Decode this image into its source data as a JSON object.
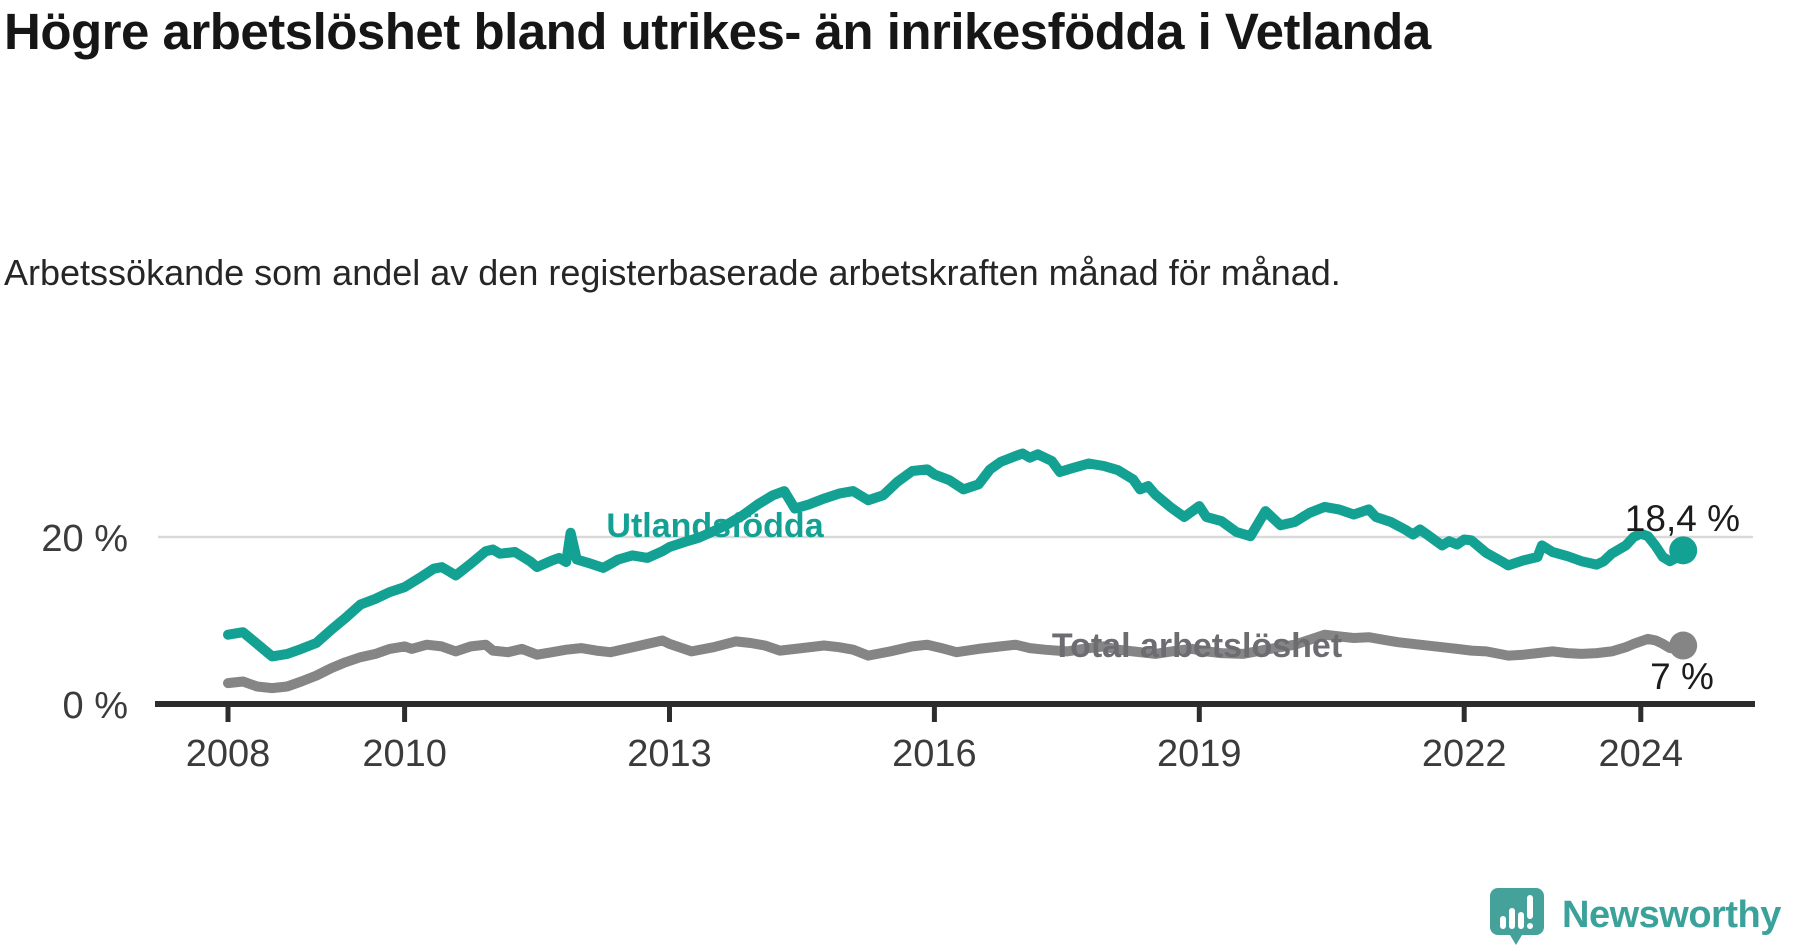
{
  "header": {
    "title": "Högre arbetslöshet bland utrikes- än inrikesfödda i Vetlanda",
    "subtitle": "Arbetssökande som andel av den registerbaserade arbetskraften månad för månad."
  },
  "chart_data": {
    "type": "line",
    "title": "Högre arbetslöshet bland utrikes- än inrikesfödda i Vetlanda",
    "subtitle": "Arbetssökande som andel av den registerbaserade arbetskraften månad för månad.",
    "unit": "%",
    "grid": "single horizontal gridline at 20 %",
    "legend_position": "inline labels on lines",
    "xlim": [
      2007.15,
      2025.2
    ],
    "ylim": [
      0,
      32
    ],
    "x_ticks": [
      2008,
      2010,
      2013,
      2016,
      2019,
      2022,
      2024
    ],
    "y_ticks": [
      {
        "value": 20,
        "label": "20 %"
      },
      {
        "value": 0,
        "label": "0 %"
      }
    ],
    "colors": {
      "foreign_born_line": "#12a192",
      "total_line": "#858585",
      "total_label": "#6c6c71",
      "axis": "#2d2d2d",
      "tick_text": "#3b3b3b",
      "gridline": "#d9d9d9",
      "value_text": "#1c1c1c"
    },
    "series": [
      {
        "name": "Utlandsfödda",
        "color": "#12a192",
        "end_value": 18.4,
        "end_label": "18,4 %",
        "points": [
          [
            2008.0,
            8.3
          ],
          [
            2008.17,
            8.6
          ],
          [
            2008.33,
            7.2
          ],
          [
            2008.5,
            5.7
          ],
          [
            2008.67,
            6.0
          ],
          [
            2008.83,
            6.6
          ],
          [
            2009.0,
            7.3
          ],
          [
            2009.17,
            8.9
          ],
          [
            2009.33,
            10.3
          ],
          [
            2009.5,
            11.9
          ],
          [
            2009.67,
            12.6
          ],
          [
            2009.83,
            13.4
          ],
          [
            2010.0,
            14.0
          ],
          [
            2010.17,
            15.1
          ],
          [
            2010.33,
            16.2
          ],
          [
            2010.42,
            16.4
          ],
          [
            2010.5,
            15.9
          ],
          [
            2010.58,
            15.4
          ],
          [
            2010.75,
            16.8
          ],
          [
            2010.92,
            18.3
          ],
          [
            2011.0,
            18.5
          ],
          [
            2011.08,
            18.0
          ],
          [
            2011.25,
            18.2
          ],
          [
            2011.42,
            17.1
          ],
          [
            2011.5,
            16.4
          ],
          [
            2011.67,
            17.2
          ],
          [
            2011.75,
            17.5
          ],
          [
            2011.83,
            17.0
          ],
          [
            2011.88,
            20.5
          ],
          [
            2011.95,
            17.3
          ],
          [
            2012.08,
            16.9
          ],
          [
            2012.25,
            16.3
          ],
          [
            2012.42,
            17.3
          ],
          [
            2012.58,
            17.8
          ],
          [
            2012.75,
            17.5
          ],
          [
            2012.92,
            18.3
          ],
          [
            2013.0,
            18.8
          ],
          [
            2013.17,
            19.4
          ],
          [
            2013.33,
            19.9
          ],
          [
            2013.5,
            20.7
          ],
          [
            2013.67,
            21.6
          ],
          [
            2013.83,
            22.6
          ],
          [
            2014.0,
            23.9
          ],
          [
            2014.17,
            25.0
          ],
          [
            2014.3,
            25.5
          ],
          [
            2014.42,
            23.4
          ],
          [
            2014.58,
            23.9
          ],
          [
            2014.75,
            24.6
          ],
          [
            2014.92,
            25.2
          ],
          [
            2015.08,
            25.5
          ],
          [
            2015.25,
            24.4
          ],
          [
            2015.42,
            25.0
          ],
          [
            2015.58,
            26.6
          ],
          [
            2015.75,
            27.9
          ],
          [
            2015.92,
            28.1
          ],
          [
            2016.0,
            27.5
          ],
          [
            2016.17,
            26.8
          ],
          [
            2016.33,
            25.7
          ],
          [
            2016.5,
            26.3
          ],
          [
            2016.63,
            28.1
          ],
          [
            2016.75,
            29.0
          ],
          [
            2016.92,
            29.7
          ],
          [
            2017.0,
            30.0
          ],
          [
            2017.08,
            29.5
          ],
          [
            2017.17,
            29.9
          ],
          [
            2017.33,
            29.1
          ],
          [
            2017.42,
            27.8
          ],
          [
            2017.58,
            28.3
          ],
          [
            2017.75,
            28.8
          ],
          [
            2017.92,
            28.5
          ],
          [
            2018.08,
            28.0
          ],
          [
            2018.25,
            26.9
          ],
          [
            2018.33,
            25.7
          ],
          [
            2018.42,
            26.1
          ],
          [
            2018.5,
            25.1
          ],
          [
            2018.67,
            23.6
          ],
          [
            2018.83,
            22.4
          ],
          [
            2019.0,
            23.7
          ],
          [
            2019.08,
            22.4
          ],
          [
            2019.25,
            21.9
          ],
          [
            2019.42,
            20.6
          ],
          [
            2019.58,
            20.1
          ],
          [
            2019.75,
            23.1
          ],
          [
            2019.92,
            21.4
          ],
          [
            2020.08,
            21.8
          ],
          [
            2020.25,
            22.9
          ],
          [
            2020.42,
            23.6
          ],
          [
            2020.58,
            23.3
          ],
          [
            2020.75,
            22.7
          ],
          [
            2020.92,
            23.3
          ],
          [
            2021.0,
            22.4
          ],
          [
            2021.17,
            21.8
          ],
          [
            2021.33,
            20.9
          ],
          [
            2021.42,
            20.3
          ],
          [
            2021.5,
            20.9
          ],
          [
            2021.58,
            20.3
          ],
          [
            2021.75,
            19.0
          ],
          [
            2021.83,
            19.5
          ],
          [
            2021.92,
            19.1
          ],
          [
            2022.0,
            19.7
          ],
          [
            2022.08,
            19.6
          ],
          [
            2022.25,
            18.1
          ],
          [
            2022.42,
            17.1
          ],
          [
            2022.5,
            16.6
          ],
          [
            2022.67,
            17.2
          ],
          [
            2022.83,
            17.6
          ],
          [
            2022.88,
            19.0
          ],
          [
            2023.0,
            18.2
          ],
          [
            2023.17,
            17.7
          ],
          [
            2023.33,
            17.1
          ],
          [
            2023.5,
            16.7
          ],
          [
            2023.58,
            17.1
          ],
          [
            2023.67,
            18.0
          ],
          [
            2023.83,
            19.0
          ],
          [
            2023.92,
            20.0
          ],
          [
            2024.0,
            20.4
          ],
          [
            2024.08,
            20.1
          ],
          [
            2024.17,
            18.9
          ],
          [
            2024.25,
            17.6
          ],
          [
            2024.33,
            17.1
          ],
          [
            2024.4,
            17.5
          ],
          [
            2024.48,
            18.4
          ]
        ]
      },
      {
        "name": "Total arbetslöshet",
        "color": "#858585",
        "end_value": 7,
        "end_label": "7 %",
        "points": [
          [
            2008.0,
            2.5
          ],
          [
            2008.17,
            2.7
          ],
          [
            2008.33,
            2.1
          ],
          [
            2008.5,
            1.9
          ],
          [
            2008.67,
            2.1
          ],
          [
            2008.83,
            2.7
          ],
          [
            2009.0,
            3.4
          ],
          [
            2009.17,
            4.3
          ],
          [
            2009.33,
            5.0
          ],
          [
            2009.5,
            5.6
          ],
          [
            2009.67,
            6.0
          ],
          [
            2009.83,
            6.6
          ],
          [
            2010.0,
            6.9
          ],
          [
            2010.08,
            6.6
          ],
          [
            2010.25,
            7.1
          ],
          [
            2010.42,
            6.9
          ],
          [
            2010.58,
            6.3
          ],
          [
            2010.75,
            6.9
          ],
          [
            2010.92,
            7.1
          ],
          [
            2011.0,
            6.4
          ],
          [
            2011.17,
            6.2
          ],
          [
            2011.33,
            6.6
          ],
          [
            2011.5,
            5.9
          ],
          [
            2011.67,
            6.2
          ],
          [
            2011.83,
            6.5
          ],
          [
            2012.0,
            6.7
          ],
          [
            2012.17,
            6.4
          ],
          [
            2012.33,
            6.2
          ],
          [
            2012.5,
            6.6
          ],
          [
            2012.75,
            7.2
          ],
          [
            2012.92,
            7.6
          ],
          [
            2013.0,
            7.2
          ],
          [
            2013.25,
            6.3
          ],
          [
            2013.5,
            6.8
          ],
          [
            2013.75,
            7.5
          ],
          [
            2013.92,
            7.3
          ],
          [
            2014.08,
            7.0
          ],
          [
            2014.25,
            6.4
          ],
          [
            2014.5,
            6.7
          ],
          [
            2014.75,
            7.0
          ],
          [
            2014.92,
            6.8
          ],
          [
            2015.08,
            6.5
          ],
          [
            2015.25,
            5.8
          ],
          [
            2015.5,
            6.3
          ],
          [
            2015.75,
            6.9
          ],
          [
            2015.92,
            7.1
          ],
          [
            2016.08,
            6.7
          ],
          [
            2016.25,
            6.2
          ],
          [
            2016.5,
            6.6
          ],
          [
            2016.75,
            6.9
          ],
          [
            2016.92,
            7.1
          ],
          [
            2017.08,
            6.7
          ],
          [
            2017.25,
            6.5
          ],
          [
            2017.5,
            6.3
          ],
          [
            2017.75,
            6.7
          ],
          [
            2017.92,
            6.9
          ],
          [
            2018.08,
            6.5
          ],
          [
            2018.25,
            6.3
          ],
          [
            2018.5,
            6.0
          ],
          [
            2018.75,
            6.4
          ],
          [
            2018.92,
            6.6
          ],
          [
            2019.08,
            6.3
          ],
          [
            2019.25,
            6.1
          ],
          [
            2019.5,
            6.0
          ],
          [
            2019.75,
            6.5
          ],
          [
            2019.92,
            6.8
          ],
          [
            2020.08,
            7.1
          ],
          [
            2020.25,
            7.7
          ],
          [
            2020.42,
            8.3
          ],
          [
            2020.58,
            8.1
          ],
          [
            2020.75,
            7.9
          ],
          [
            2020.92,
            8.0
          ],
          [
            2021.08,
            7.7
          ],
          [
            2021.25,
            7.4
          ],
          [
            2021.5,
            7.1
          ],
          [
            2021.75,
            6.8
          ],
          [
            2021.92,
            6.6
          ],
          [
            2022.08,
            6.4
          ],
          [
            2022.25,
            6.3
          ],
          [
            2022.5,
            5.8
          ],
          [
            2022.67,
            5.9
          ],
          [
            2022.83,
            6.1
          ],
          [
            2023.0,
            6.3
          ],
          [
            2023.17,
            6.1
          ],
          [
            2023.33,
            6.0
          ],
          [
            2023.5,
            6.1
          ],
          [
            2023.67,
            6.3
          ],
          [
            2023.83,
            6.8
          ],
          [
            2023.92,
            7.2
          ],
          [
            2024.0,
            7.5
          ],
          [
            2024.08,
            7.8
          ],
          [
            2024.17,
            7.6
          ],
          [
            2024.25,
            7.2
          ],
          [
            2024.33,
            6.7
          ],
          [
            2024.4,
            6.6
          ],
          [
            2024.48,
            7.0
          ]
        ]
      }
    ]
  },
  "labels": {
    "foreign_born": "Utlandsfödda",
    "total": "Total arbetslöshet",
    "foreign_born_end": "18,4 %",
    "total_end": "7 %"
  },
  "footer": {
    "brand": "Newsworthy",
    "logo_icon": "newsworthy-speech-bubble-chart-icon"
  }
}
